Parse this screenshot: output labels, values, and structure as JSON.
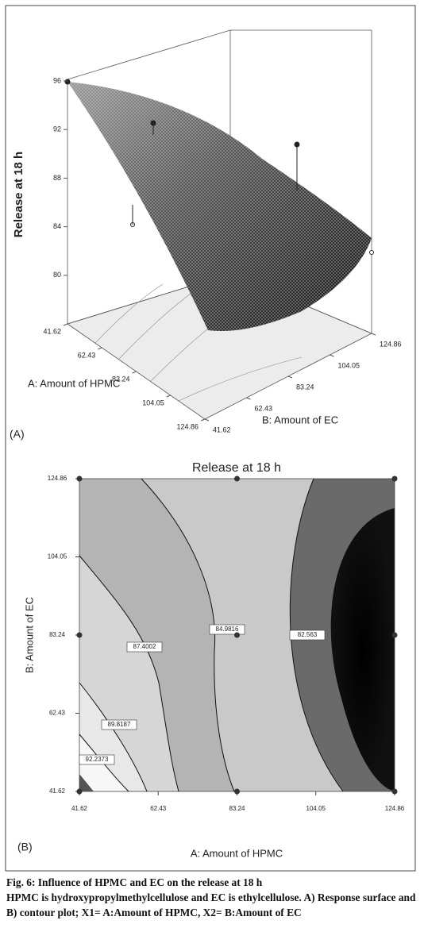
{
  "chart_data": [
    {
      "type": "surface",
      "panel_label": "(A)",
      "z_label": "Release at 18 h",
      "x_label": "A: Amount of HPMC",
      "y_label": "B: Amount of EC",
      "xlim": [
        41.62,
        124.86
      ],
      "xticks": [
        41.62,
        62.43,
        83.24,
        104.05,
        124.86
      ],
      "ylim": [
        41.62,
        124.86
      ],
      "yticks": [
        41.62,
        62.43,
        83.24,
        104.05,
        124.86
      ],
      "zlim": [
        76,
        96
      ],
      "zticks": [
        80,
        84,
        88,
        92,
        96
      ]
    },
    {
      "type": "contour",
      "title": "Release at 18 h",
      "panel_label": "(B)",
      "x_label": "A: Amount of HPMC",
      "y_label": "B: Amount of EC",
      "xlim": [
        41.62,
        124.86
      ],
      "xticks": [
        41.62,
        62.43,
        83.24,
        104.05,
        124.86
      ],
      "ylim": [
        41.62,
        124.86
      ],
      "yticks": [
        41.62,
        62.43,
        83.24,
        104.05,
        124.86
      ],
      "levels": [
        92.2373,
        89.8187,
        87.4002,
        84.9816,
        82.563
      ],
      "design_points": {
        "x": [
          41.62,
          41.62,
          124.86,
          124.86,
          83.24,
          83.24,
          83.24,
          41.62,
          124.86
        ],
        "y": [
          41.62,
          124.86,
          124.86,
          41.62,
          83.24,
          41.62,
          124.86,
          83.24,
          83.24
        ]
      }
    }
  ],
  "caption": {
    "title": "Fig. 6: Influence of HPMC and EC on the release at 18 h",
    "text": "HPMC is hydroxypropylmethylcellulose and EC is ethylcellulose. A) Response surface and B) contour plot; X1= A:Amount of HPMC, X2= B:Amount of EC"
  }
}
